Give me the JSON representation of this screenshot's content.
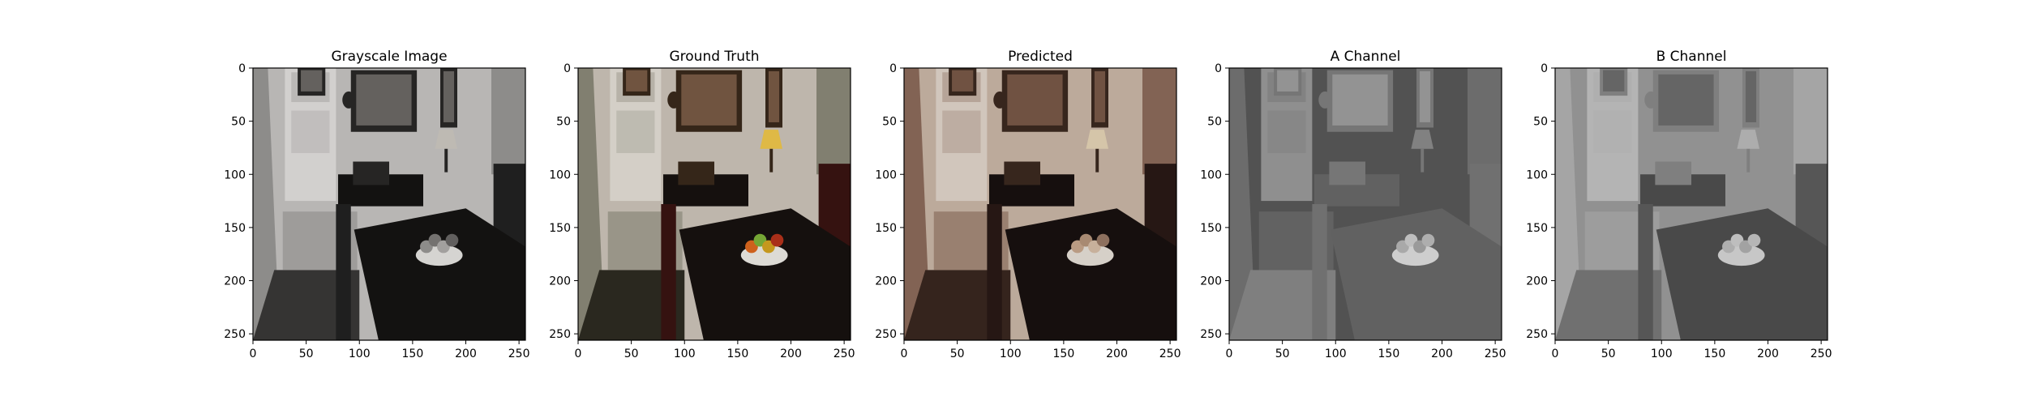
{
  "figure": {
    "panels": [
      {
        "title": "Grayscale Image",
        "key": "gray"
      },
      {
        "title": "Ground Truth",
        "key": "gt"
      },
      {
        "title": "Predicted",
        "key": "pred"
      },
      {
        "title": "A Channel",
        "key": "a"
      },
      {
        "title": "B Channel",
        "key": "b"
      }
    ],
    "x_ticks": [
      "0",
      "50",
      "100",
      "150",
      "200",
      "250"
    ],
    "y_ticks": [
      "0",
      "50",
      "100",
      "150",
      "200",
      "250"
    ],
    "axis_range": [
      0,
      256
    ]
  },
  "colors": {
    "wall_light": "#c9c6c2",
    "table_dark": "#141210",
    "gt_lamp": "#f2c94c",
    "gt_fruit_orange": "#e06a1f",
    "gt_fruit_green": "#7fb53a",
    "pred_tint": "#7a5a48"
  }
}
